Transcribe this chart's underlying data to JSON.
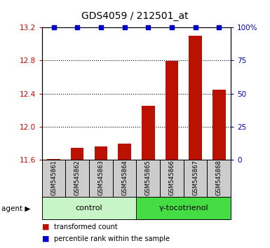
{
  "title": "GDS4059 / 212501_at",
  "samples": [
    "GSM545861",
    "GSM545862",
    "GSM545863",
    "GSM545864",
    "GSM545865",
    "GSM545866",
    "GSM545867",
    "GSM545868"
  ],
  "red_values": [
    11.61,
    11.75,
    11.76,
    11.8,
    12.25,
    12.79,
    13.1,
    12.45
  ],
  "blue_values": [
    100,
    100,
    100,
    100,
    100,
    100,
    100,
    100
  ],
  "ylim_left": [
    11.6,
    13.2
  ],
  "ylim_right": [
    0,
    100
  ],
  "yticks_left": [
    11.6,
    12.0,
    12.4,
    12.8,
    13.2
  ],
  "yticks_right": [
    0,
    25,
    50,
    75,
    100
  ],
  "ytick_labels_right": [
    "0",
    "25",
    "50",
    "75",
    "100%"
  ],
  "groups": [
    {
      "label": "control",
      "indices": [
        0,
        1,
        2,
        3
      ],
      "color": "#c8f5c8"
    },
    {
      "label": "γ-tocotrienol",
      "indices": [
        4,
        5,
        6,
        7
      ],
      "color": "#44dd44"
    }
  ],
  "bar_color": "#bb1100",
  "dot_color": "#0000cc",
  "bar_width": 0.55,
  "agent_label": "agent",
  "legend_items": [
    {
      "color": "#bb1100",
      "label": "transformed count"
    },
    {
      "color": "#0000cc",
      "label": "percentile rank within the sample"
    }
  ],
  "sample_box_color": "#cccccc",
  "left_tick_color": "#cc0000",
  "right_tick_color": "#0000bb",
  "title_fontsize": 10,
  "tick_fontsize": 7.5,
  "sample_fontsize": 6,
  "group_fontsize": 8,
  "legend_fontsize": 7
}
